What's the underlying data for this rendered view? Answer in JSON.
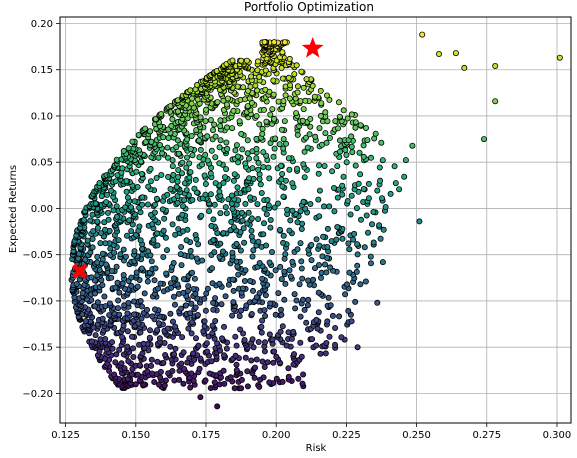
{
  "chart_data": {
    "type": "scatter",
    "title": "Portfolio Optimization",
    "xlabel": "Risk",
    "ylabel": "Expected Returns",
    "xlim": [
      0.123,
      0.305
    ],
    "ylim": [
      -0.232,
      0.207
    ],
    "x_ticks": [
      0.125,
      0.15,
      0.175,
      0.2,
      0.225,
      0.25,
      0.275,
      0.3
    ],
    "x_tick_labels": [
      "0.125",
      "0.150",
      "0.175",
      "0.200",
      "0.225",
      "0.250",
      "0.275",
      "0.300"
    ],
    "y_ticks": [
      -0.2,
      -0.15,
      -0.1,
      -0.05,
      0.0,
      0.05,
      0.1,
      0.15,
      0.2
    ],
    "y_tick_labels": [
      "−0.20",
      "−0.15",
      "−0.10",
      "−0.05",
      "0.00",
      "0.05",
      "0.10",
      "0.15",
      "0.20"
    ],
    "grid": true,
    "colormap": "viridis",
    "color_encodes": "expected returns",
    "point_count_approx": 10000,
    "highlighted_points": [
      {
        "marker": "star",
        "color": "#ff0000",
        "x": 0.213,
        "y": 0.173
      },
      {
        "marker": "x",
        "color": "#ff0000",
        "x": 0.13,
        "y": -0.068
      }
    ],
    "outlier_points": [
      {
        "x": 0.301,
        "y": 0.163
      },
      {
        "x": 0.278,
        "y": 0.154
      },
      {
        "x": 0.278,
        "y": 0.116
      },
      {
        "x": 0.274,
        "y": 0.075
      },
      {
        "x": 0.267,
        "y": 0.152
      },
      {
        "x": 0.264,
        "y": 0.168
      },
      {
        "x": 0.252,
        "y": 0.188
      },
      {
        "x": 0.258,
        "y": 0.167
      },
      {
        "x": 0.251,
        "y": -0.014
      },
      {
        "x": 0.229,
        "y": -0.15
      },
      {
        "x": 0.179,
        "y": -0.214
      },
      {
        "x": 0.173,
        "y": -0.204
      },
      {
        "x": 0.194,
        "y": -0.193
      },
      {
        "x": 0.236,
        "y": -0.102
      },
      {
        "x": 0.238,
        "y": -0.058
      }
    ],
    "colors": {
      "point_edge": "#000000",
      "grid": "#b0b0b0",
      "highlight": "#ff0000"
    }
  }
}
